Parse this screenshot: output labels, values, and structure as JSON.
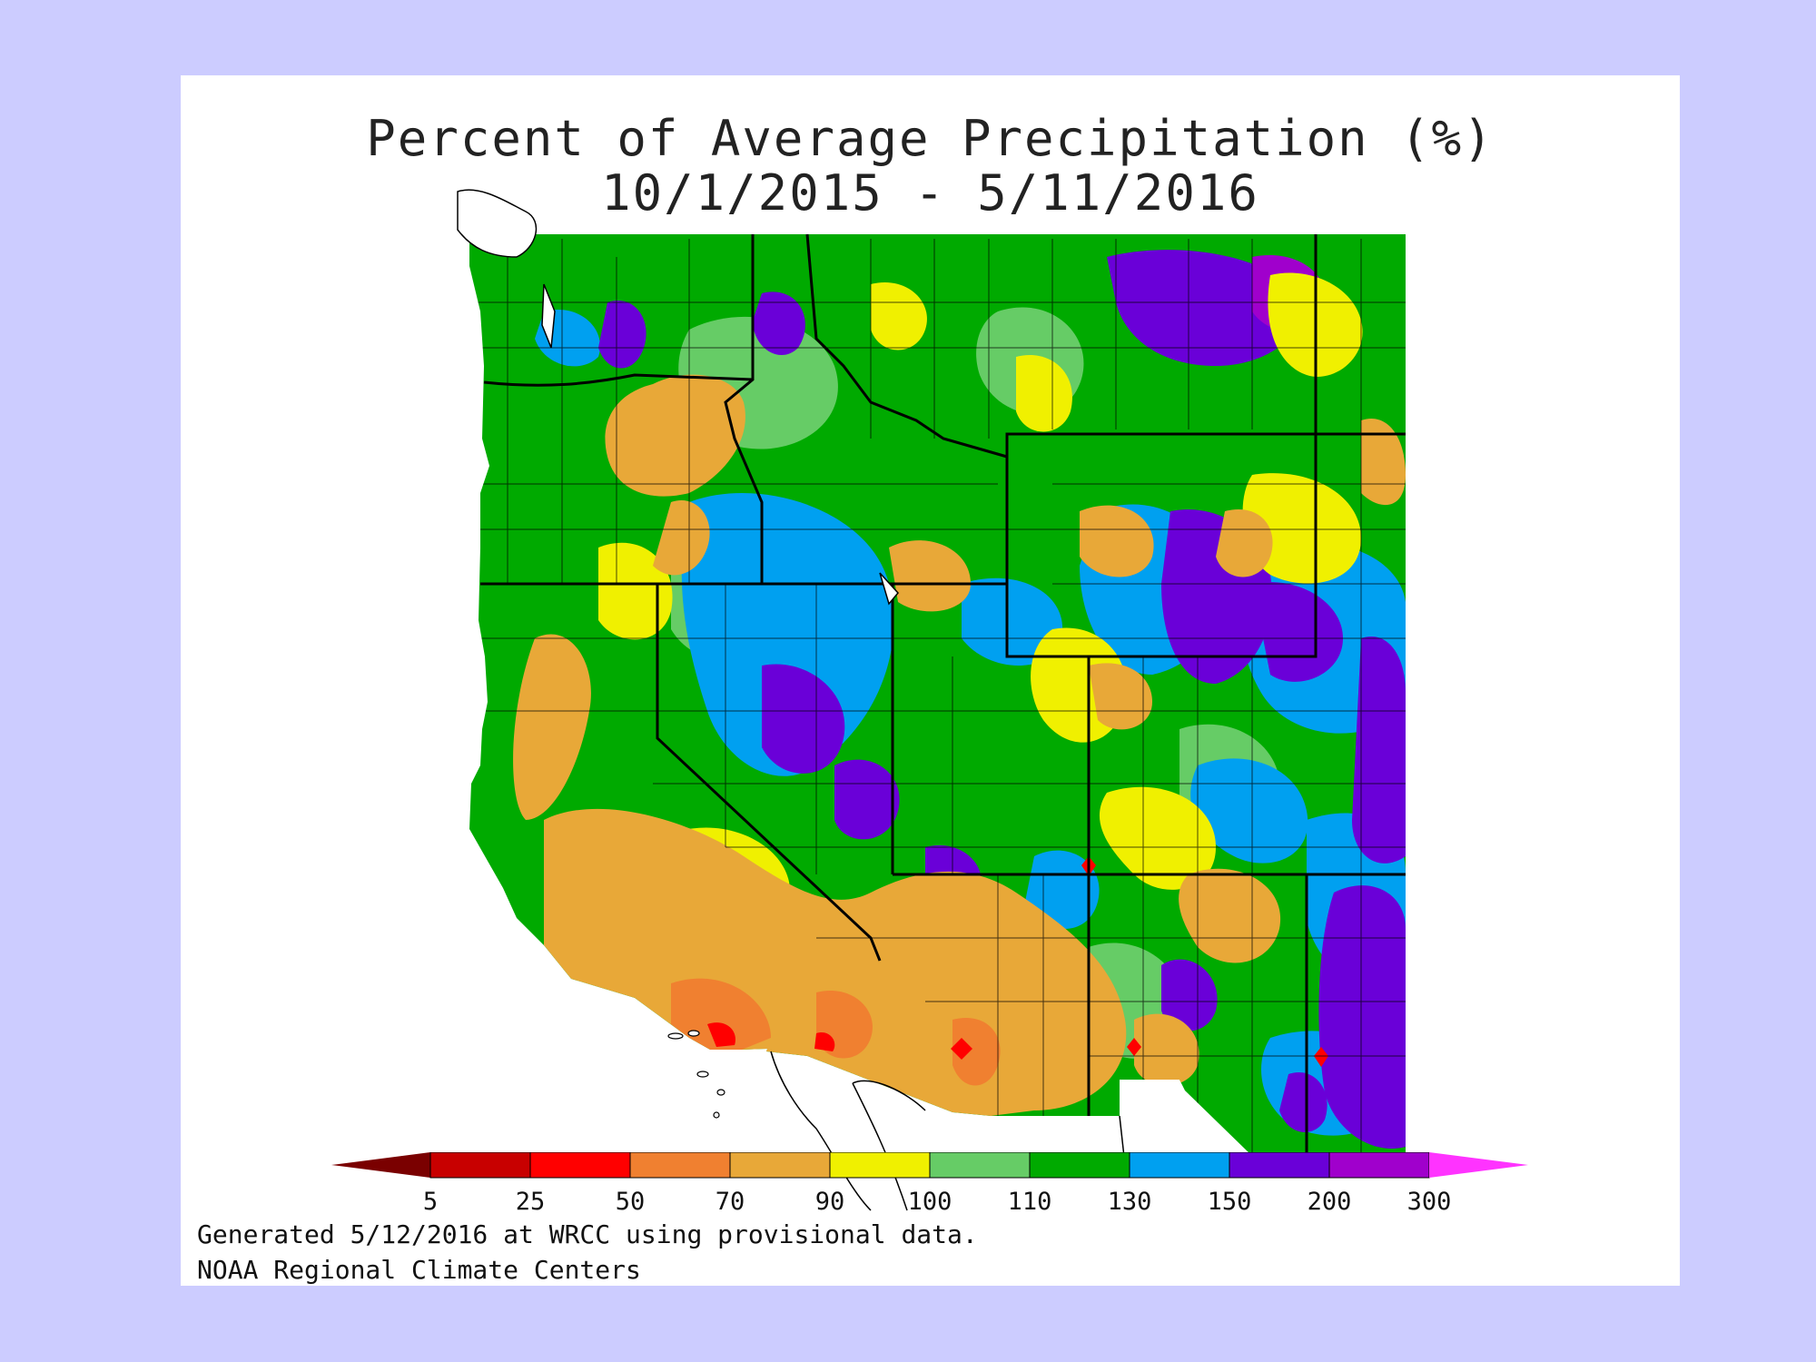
{
  "map": {
    "title_line1": "Percent of Average Precipitation (%)",
    "title_line2": "10/1/2015 - 5/11/2016",
    "footer_line1": "Generated 5/12/2016 at WRCC using provisional data.",
    "footer_line2": "NOAA Regional Climate Centers"
  },
  "legend": {
    "ticks": [
      "5",
      "25",
      "50",
      "70",
      "90",
      "100",
      "110",
      "130",
      "150",
      "200",
      "300"
    ],
    "colors": [
      "#7a0000",
      "#c80000",
      "#ff0000",
      "#f08030",
      "#e8a838",
      "#f0f000",
      "#66cc66",
      "#00aa00",
      "#00a0f0",
      "#6a00d8",
      "#a000cc",
      "#ff33ff"
    ]
  },
  "colors": {
    "page_background": "#ccccff",
    "panel_background": "#ffffff",
    "lt50": "#ff0000",
    "p50_70": "#f08030",
    "p70_90": "#e8a838",
    "p90_100": "#f0f000",
    "p100_110": "#66cc66",
    "p110_130": "#00aa00",
    "p130_150": "#00a0f0",
    "p150_200": "#6a00d8",
    "p200_300": "#a000cc"
  }
}
